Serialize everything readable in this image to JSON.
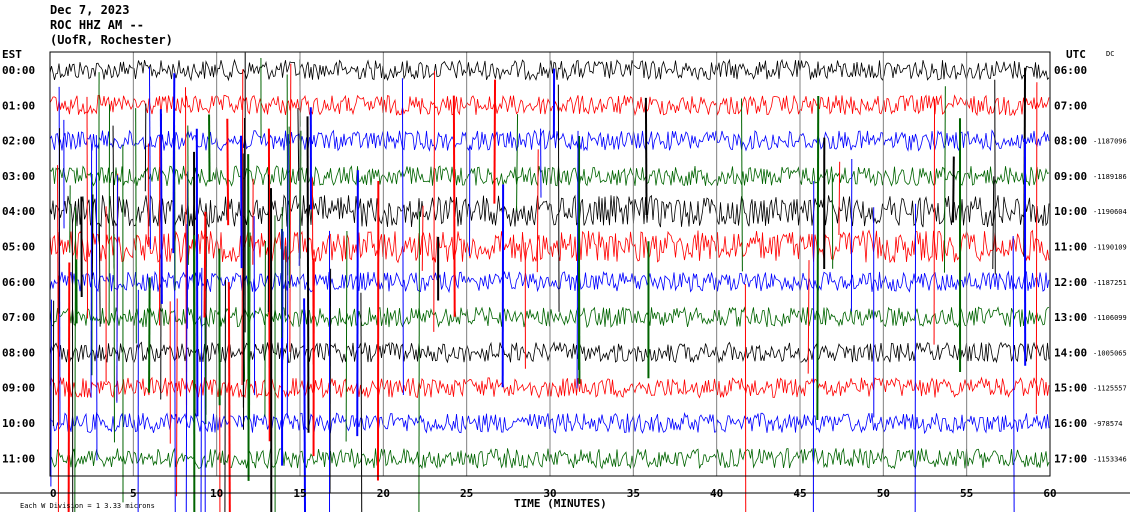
{
  "header": {
    "line1": "Dec 7, 2023",
    "line2": "ROC HHZ AM --",
    "line3": "(UofR, Rochester)",
    "left_tz": "EST",
    "right_tz": "UTC",
    "dc": "DC"
  },
  "footer": {
    "xlabel": "TIME (MINUTES)",
    "scale_note": "Each W Division = 1 3.33 microns"
  },
  "chart_data": {
    "type": "line",
    "title": "",
    "xlabel": "TIME (MINUTES)",
    "xlim": [
      0,
      60
    ],
    "x_ticks": [
      0,
      5,
      10,
      15,
      20,
      25,
      30,
      35,
      40,
      45,
      50,
      55,
      60
    ],
    "rows_left": [
      "00:00",
      "01:00",
      "02:00",
      "03:00",
      "04:00",
      "05:00",
      "06:00",
      "07:00",
      "08:00",
      "09:00",
      "10:00",
      "11:00"
    ],
    "rows_right": [
      "06:00",
      "07:00",
      "08:00",
      "09:00",
      "10:00",
      "11:00",
      "12:00",
      "13:00",
      "14:00",
      "15:00",
      "16:00",
      "17:00"
    ],
    "dc_offsets": [
      "",
      "",
      "-1187096",
      "-1189186",
      "-1190604",
      "-1190109",
      "-1187251",
      "-1106099",
      "-1005065",
      "-1125557",
      "-978574",
      "-1153346"
    ],
    "trace_colors": [
      "#000000",
      "#ff0000",
      "#0000ff",
      "#006400"
    ],
    "grid": true
  }
}
